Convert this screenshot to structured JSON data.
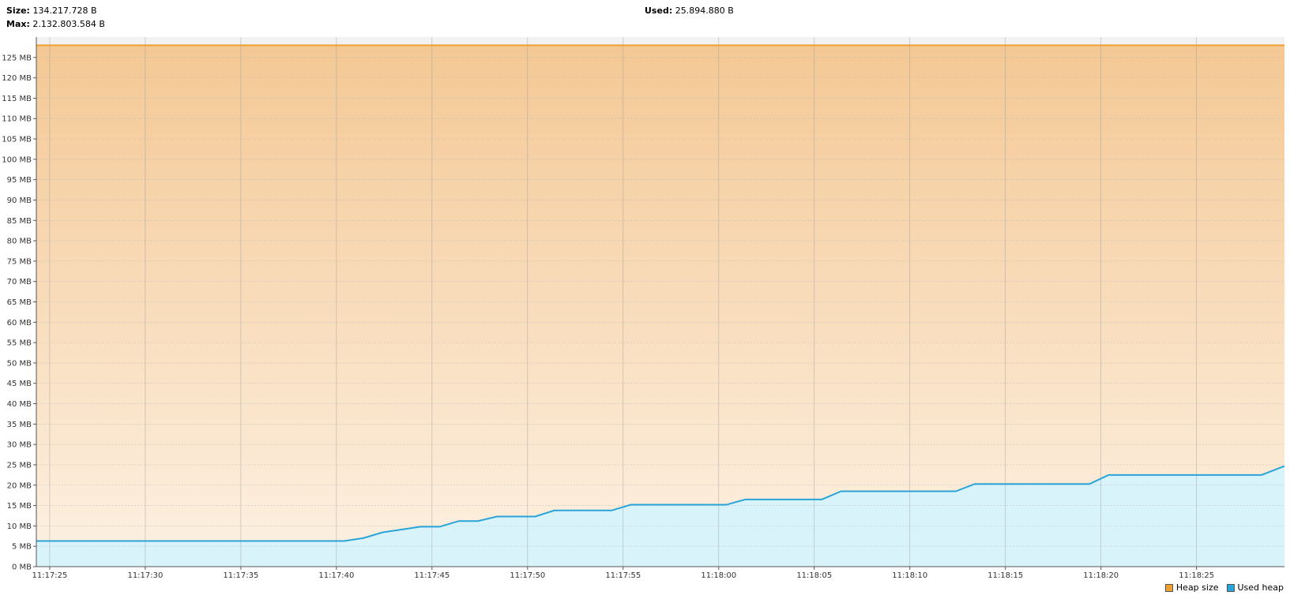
{
  "header": {
    "size_label": "Size:",
    "size_value": "134.217.728 B",
    "max_label": "Max:",
    "max_value": "2.132.803.584 B",
    "used_label": "Used:",
    "used_value": "25.894.880 B"
  },
  "legend": {
    "heap_size": "Heap size",
    "used_heap": "Used heap"
  },
  "colors": {
    "heap_size": "#f0a030",
    "used_heap": "#2aa4d8"
  },
  "chart_data": {
    "type": "area",
    "title": "",
    "xlabel": "",
    "ylabel": "",
    "ylim": [
      0,
      130
    ],
    "y_unit": "MB",
    "y_ticks": [
      "0 MB",
      "5 MB",
      "10 MB",
      "15 MB",
      "20 MB",
      "25 MB",
      "30 MB",
      "35 MB",
      "40 MB",
      "45 MB",
      "50 MB",
      "55 MB",
      "60 MB",
      "65 MB",
      "70 MB",
      "75 MB",
      "80 MB",
      "85 MB",
      "90 MB",
      "95 MB",
      "100 MB",
      "105 MB",
      "110 MB",
      "115 MB",
      "120 MB",
      "125 MB"
    ],
    "x_ticks": [
      "11:17:25",
      "11:17:30",
      "11:17:35",
      "11:17:40",
      "11:17:45",
      "11:17:50",
      "11:17:55",
      "11:18:00",
      "11:18:05",
      "11:18:10",
      "11:18:15",
      "11:18:20",
      "11:18:25"
    ],
    "xlim": [
      "11:17:24.3",
      "11:18:29.6"
    ],
    "grid": true,
    "legend_position": "bottom-right",
    "series": [
      {
        "name": "Heap size",
        "x": [
          "11:17:24.3",
          "11:18:29.6"
        ],
        "values": [
          128,
          128
        ]
      },
      {
        "name": "Used heap",
        "x": [
          "11:17:24.3",
          "11:17:40.4",
          "11:17:41.4",
          "11:17:42.4",
          "11:17:44.4",
          "11:17:45.4",
          "11:17:46.4",
          "11:17:47.4",
          "11:17:48.4",
          "11:17:50.4",
          "11:17:51.4",
          "11:17:54.4",
          "11:17:55.4",
          "11:18:00.4",
          "11:18:01.4",
          "11:18:05.4",
          "11:18:06.4",
          "11:18:12.4",
          "11:18:13.4",
          "11:18:19.4",
          "11:18:20.4",
          "11:18:28.4",
          "11:18:29.6"
        ],
        "values": [
          6.3,
          6.3,
          7.0,
          8.4,
          9.8,
          9.8,
          11.2,
          11.2,
          12.3,
          12.3,
          13.8,
          13.8,
          15.2,
          15.2,
          16.5,
          16.5,
          18.5,
          18.5,
          20.3,
          20.3,
          22.5,
          22.5,
          24.7
        ]
      }
    ]
  }
}
